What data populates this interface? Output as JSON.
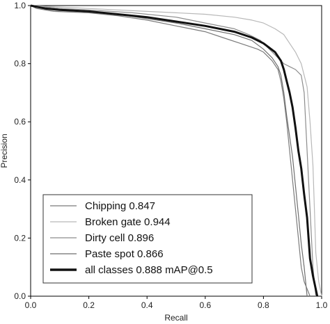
{
  "chart_data": {
    "type": "line",
    "xlabel": "Recall",
    "ylabel": "Precision",
    "xlim": [
      0,
      1
    ],
    "ylim": [
      0,
      1
    ],
    "xticks": [
      "0.0",
      "0.2",
      "0.4",
      "0.6",
      "0.8",
      "1.0"
    ],
    "yticks": [
      "0.0",
      "0.2",
      "0.4",
      "0.6",
      "0.8",
      "1.0"
    ],
    "grid": false,
    "legend_position": "bottom-left",
    "series": [
      {
        "name": "Chipping 0.847",
        "color": "#7a7a7a",
        "points": [
          [
            0,
            1.0
          ],
          [
            0.02,
            0.99
          ],
          [
            0.08,
            0.98
          ],
          [
            0.2,
            0.975
          ],
          [
            0.3,
            0.965
          ],
          [
            0.4,
            0.95
          ],
          [
            0.5,
            0.93
          ],
          [
            0.6,
            0.91
          ],
          [
            0.66,
            0.89
          ],
          [
            0.72,
            0.87
          ],
          [
            0.78,
            0.85
          ],
          [
            0.8,
            0.84
          ],
          [
            0.83,
            0.81
          ],
          [
            0.85,
            0.78
          ],
          [
            0.86,
            0.74
          ],
          [
            0.87,
            0.68
          ],
          [
            0.88,
            0.6
          ],
          [
            0.89,
            0.5
          ],
          [
            0.9,
            0.4
          ],
          [
            0.91,
            0.3
          ],
          [
            0.92,
            0.2
          ],
          [
            0.93,
            0.1
          ],
          [
            0.94,
            0.05
          ],
          [
            0.96,
            0.0
          ]
        ]
      },
      {
        "name": "Broken gate 0.944",
        "color": "#b8b8b8",
        "points": [
          [
            0,
            1.0
          ],
          [
            0.1,
            0.995
          ],
          [
            0.2,
            0.99
          ],
          [
            0.3,
            0.985
          ],
          [
            0.4,
            0.98
          ],
          [
            0.5,
            0.975
          ],
          [
            0.6,
            0.97
          ],
          [
            0.7,
            0.96
          ],
          [
            0.76,
            0.95
          ],
          [
            0.8,
            0.94
          ],
          [
            0.84,
            0.92
          ],
          [
            0.87,
            0.9
          ],
          [
            0.89,
            0.87
          ],
          [
            0.91,
            0.84
          ],
          [
            0.93,
            0.8
          ],
          [
            0.95,
            0.72
          ],
          [
            0.96,
            0.6
          ],
          [
            0.97,
            0.45
          ],
          [
            0.975,
            0.3
          ],
          [
            0.98,
            0.15
          ],
          [
            0.99,
            0.05
          ],
          [
            1.0,
            0.0
          ]
        ]
      },
      {
        "name": "Dirty cell 0.896",
        "color": "#8c8c8c",
        "points": [
          [
            0,
            1.0
          ],
          [
            0.1,
            0.99
          ],
          [
            0.2,
            0.985
          ],
          [
            0.35,
            0.975
          ],
          [
            0.5,
            0.96
          ],
          [
            0.6,
            0.94
          ],
          [
            0.7,
            0.92
          ],
          [
            0.75,
            0.9
          ],
          [
            0.79,
            0.88
          ],
          [
            0.82,
            0.85
          ],
          [
            0.85,
            0.82
          ],
          [
            0.87,
            0.8
          ],
          [
            0.89,
            0.79
          ],
          [
            0.91,
            0.78
          ],
          [
            0.93,
            0.76
          ],
          [
            0.94,
            0.7
          ],
          [
            0.945,
            0.6
          ],
          [
            0.95,
            0.5
          ],
          [
            0.955,
            0.4
          ],
          [
            0.96,
            0.3
          ],
          [
            0.965,
            0.2
          ],
          [
            0.97,
            0.1
          ],
          [
            0.98,
            0.0
          ]
        ]
      },
      {
        "name": "Paste spot 0.866",
        "color": "#6e6e6e",
        "points": [
          [
            0,
            1.0
          ],
          [
            0.1,
            0.99
          ],
          [
            0.2,
            0.98
          ],
          [
            0.3,
            0.97
          ],
          [
            0.4,
            0.955
          ],
          [
            0.5,
            0.94
          ],
          [
            0.6,
            0.92
          ],
          [
            0.7,
            0.9
          ],
          [
            0.76,
            0.88
          ],
          [
            0.8,
            0.85
          ],
          [
            0.83,
            0.82
          ],
          [
            0.85,
            0.79
          ],
          [
            0.86,
            0.76
          ],
          [
            0.87,
            0.7
          ],
          [
            0.88,
            0.62
          ],
          [
            0.89,
            0.55
          ],
          [
            0.9,
            0.48
          ],
          [
            0.91,
            0.38
          ],
          [
            0.92,
            0.28
          ],
          [
            0.93,
            0.18
          ],
          [
            0.94,
            0.1
          ],
          [
            0.95,
            0.0
          ]
        ]
      },
      {
        "name": "all classes 0.888 mAP@0.5",
        "color": "#111111",
        "bold": true,
        "points": [
          [
            0,
            1.0
          ],
          [
            0.05,
            0.99
          ],
          [
            0.1,
            0.985
          ],
          [
            0.2,
            0.98
          ],
          [
            0.3,
            0.97
          ],
          [
            0.4,
            0.96
          ],
          [
            0.5,
            0.945
          ],
          [
            0.6,
            0.93
          ],
          [
            0.7,
            0.91
          ],
          [
            0.76,
            0.89
          ],
          [
            0.8,
            0.87
          ],
          [
            0.84,
            0.84
          ],
          [
            0.86,
            0.81
          ],
          [
            0.87,
            0.78
          ],
          [
            0.88,
            0.74
          ],
          [
            0.89,
            0.7
          ],
          [
            0.9,
            0.65
          ],
          [
            0.91,
            0.58
          ],
          [
            0.92,
            0.5
          ],
          [
            0.93,
            0.44
          ],
          [
            0.94,
            0.35
          ],
          [
            0.95,
            0.27
          ],
          [
            0.955,
            0.2
          ],
          [
            0.96,
            0.13
          ],
          [
            0.97,
            0.07
          ],
          [
            0.985,
            0.0
          ]
        ]
      }
    ]
  }
}
